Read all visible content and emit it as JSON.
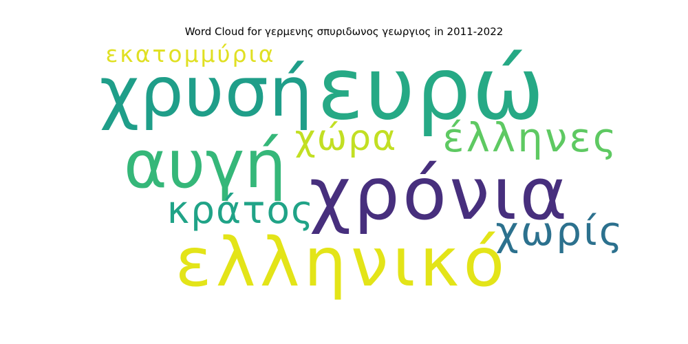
{
  "chart_data": {
    "type": "wordcloud",
    "title": "Word Cloud for γερμενης σπυριδωνος γεωργιος in 2011-2022",
    "words": [
      {
        "text": "ευρώ",
        "color": "#26a985"
      },
      {
        "text": "χρυσή",
        "color": "#1f9e89"
      },
      {
        "text": "αυγή",
        "color": "#35b779"
      },
      {
        "text": "χρόνια",
        "color": "#472f7d"
      },
      {
        "text": "ελληνικό",
        "color": "#e3e418"
      },
      {
        "text": "έλληνες",
        "color": "#5ec962"
      },
      {
        "text": "χώρα",
        "color": "#c2df23"
      },
      {
        "text": "κράτος",
        "color": "#20a387"
      },
      {
        "text": "χωρίς",
        "color": "#2c718e"
      },
      {
        "text": "εκατομμύρια",
        "color": "#e0e023"
      }
    ]
  }
}
